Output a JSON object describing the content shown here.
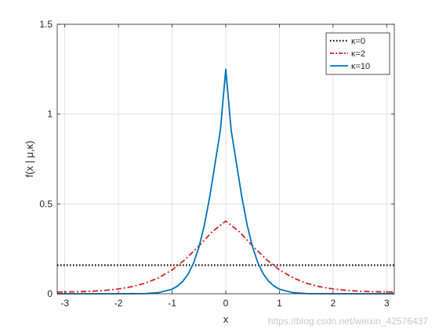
{
  "chart_data": {
    "type": "line",
    "title": "",
    "xlabel": "x",
    "ylabel": "f(x | μ,κ)",
    "xlim": [
      -3.1416,
      3.1416
    ],
    "ylim": [
      0,
      1.5
    ],
    "x_ticks": [
      -3,
      -2,
      -1,
      0,
      1,
      2,
      3
    ],
    "x_tick_labels": [
      "-3",
      "-2",
      "-1",
      "0",
      "1",
      "2",
      "3"
    ],
    "y_ticks": [
      0,
      0.5,
      1,
      1.5
    ],
    "y_tick_labels": [
      "0",
      "0.5",
      "1",
      "1.5"
    ],
    "grid": true,
    "legend_position": "top-right",
    "series": [
      {
        "name": "κ=0",
        "color": "#000000",
        "style": "dotted",
        "x": [
          -3.1416,
          -2.5,
          -2.0,
          -1.5,
          -1.0,
          -0.5,
          0.0,
          0.5,
          1.0,
          1.5,
          2.0,
          2.5,
          3.1416
        ],
        "y": [
          0.1592,
          0.1592,
          0.1592,
          0.1592,
          0.1592,
          0.1592,
          0.1592,
          0.1592,
          0.1592,
          0.1592,
          0.1592,
          0.1592,
          0.1592
        ]
      },
      {
        "name": "κ=2",
        "color": "#d62020",
        "style": "dashdot",
        "x": [
          -3.1416,
          -2.75,
          -2.5,
          -2.25,
          -2.0,
          -1.75,
          -1.5,
          -1.25,
          -1.0,
          -0.75,
          -0.5,
          -0.25,
          0.0,
          0.25,
          0.5,
          0.75,
          1.0,
          1.25,
          1.5,
          1.75,
          2.0,
          2.25,
          2.5,
          2.75,
          3.1416
        ],
        "y": [
          0.0095,
          0.0113,
          0.0139,
          0.0187,
          0.0266,
          0.0393,
          0.059,
          0.0891,
          0.1329,
          0.1926,
          0.2664,
          0.3459,
          0.4046,
          0.3459,
          0.2664,
          0.1926,
          0.1329,
          0.0891,
          0.059,
          0.0393,
          0.0266,
          0.0187,
          0.0139,
          0.0113,
          0.0095
        ]
      },
      {
        "name": "κ=10",
        "color": "#0072bd",
        "style": "solid",
        "x": [
          -3.1416,
          -2.0,
          -1.5,
          -1.25,
          -1.0,
          -0.9,
          -0.8,
          -0.7,
          -0.6,
          -0.5,
          -0.4,
          -0.3,
          -0.2,
          -0.1,
          0.0,
          0.1,
          0.2,
          0.3,
          0.4,
          0.5,
          0.6,
          0.7,
          0.8,
          0.9,
          1.0,
          1.25,
          1.5,
          2.0,
          3.1416
        ],
        "y": [
          0.0,
          0.0,
          0.0012,
          0.0063,
          0.0253,
          0.0428,
          0.0695,
          0.1101,
          0.1712,
          0.2595,
          0.3806,
          0.5376,
          0.7238,
          0.9112,
          1.25,
          0.9112,
          0.7238,
          0.5376,
          0.3806,
          0.2595,
          0.1712,
          0.1101,
          0.0695,
          0.0428,
          0.0253,
          0.0063,
          0.0012,
          0.0,
          0.0
        ]
      }
    ]
  },
  "watermark": "https://blog.csdn.net/weixin_42576437"
}
